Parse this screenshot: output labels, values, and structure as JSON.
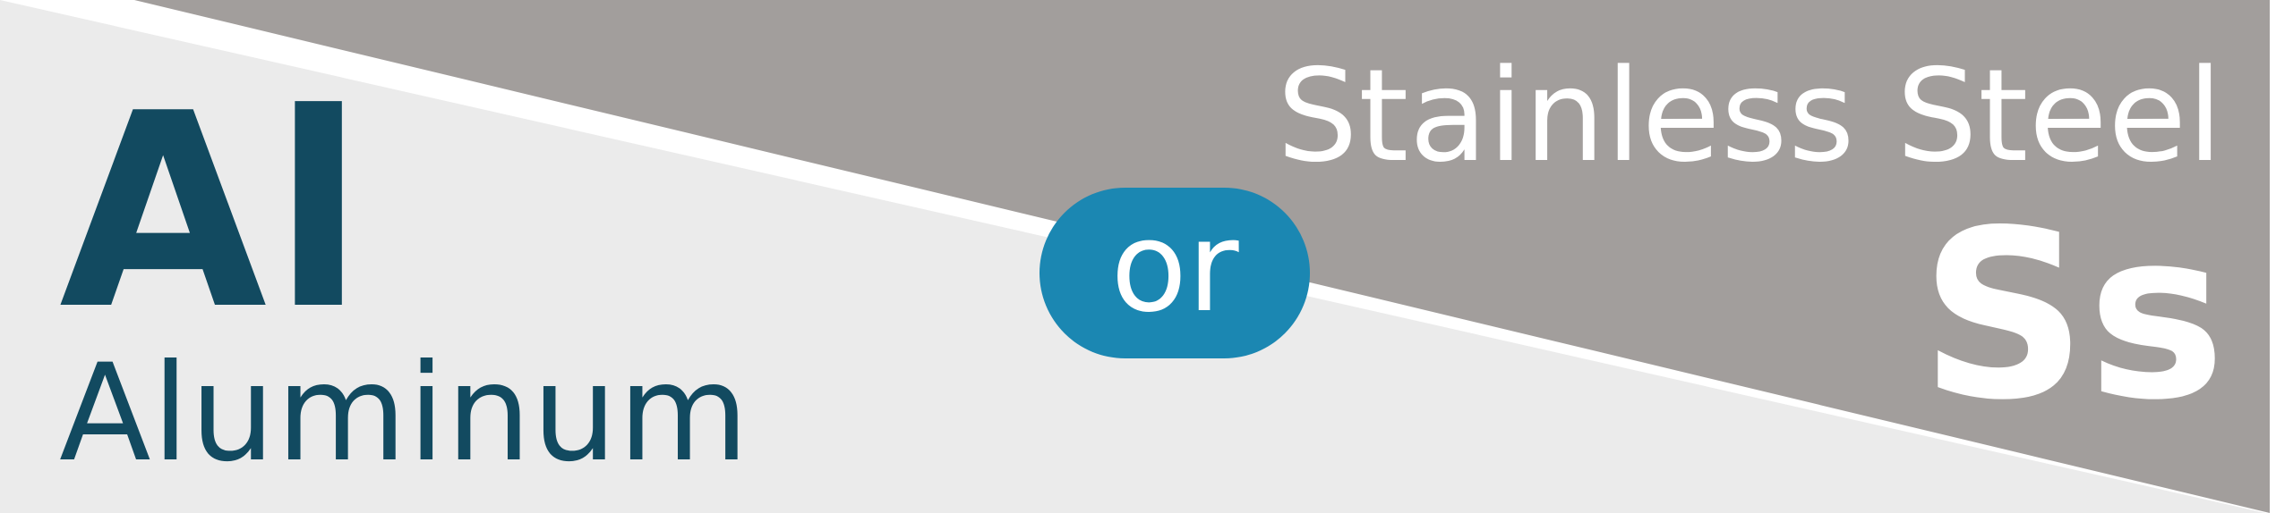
{
  "left": {
    "symbol": "Al",
    "name": "Aluminum"
  },
  "right": {
    "name": "Stainless Steel",
    "symbol": "Ss"
  },
  "connector": {
    "label": "or"
  },
  "colors": {
    "left_background": "#ebebeb",
    "right_background": "#a29e9c",
    "divider": "#ffffff",
    "aluminum_text": "#124a60",
    "steel_text": "#ffffff",
    "pill": "#1b87b2"
  }
}
